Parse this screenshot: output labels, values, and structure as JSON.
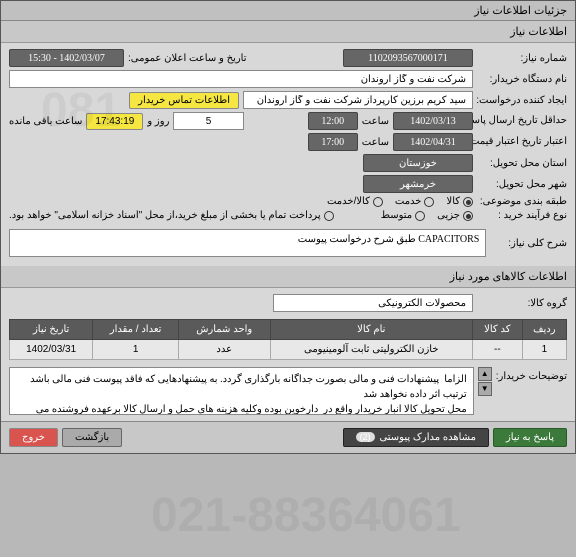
{
  "window": {
    "title": "جزئیات اطلاعات نیاز"
  },
  "section1": "اطلاعات نیاز",
  "labels": {
    "need_number": "شماره نیاز:",
    "public_announce": "تاریخ و ساعت اعلان عمومی:",
    "buyer_org": "نام دستگاه خریدار:",
    "request_creator": "ایجاد کننده درخواست:",
    "deadline": "حداقل تاریخ ارسال پاسخ: تا تاریخ:",
    "hour1": "ساعت",
    "hour2": "ساعت",
    "days_and": "روز و",
    "remaining": "ساعت باقی مانده",
    "validity": "اعتبار تاریخ اعتبار قیمت: تا تاریخ:",
    "delivery_province": "استان محل تحویل:",
    "delivery_city": "شهر محل تحویل:",
    "category": "طبقه بندی موضوعی:",
    "purchase_type": "نوع فرآیند خرید :",
    "payment_note": "پرداخت تمام یا بخشی از مبلغ خرید،از محل \"اسناد خزانه اسلامی\" خواهد بود.",
    "contact_btn": "اطلاعات تماس خریدار",
    "need_desc": "شرح کلی نیاز:",
    "goods_section": "اطلاعات کالاهای مورد نیاز",
    "goods_group": "گروه کالا:",
    "buyer_notes": "توضیحات خریدار:"
  },
  "values": {
    "need_number": "1102093567000171",
    "announce_datetime": "1402/03/07 - 15:30",
    "buyer_org": "شرکت نفت و گاز اروندان",
    "request_creator": "سید کریم برزین کارپرداز شرکت نفت و گاز اروندان",
    "deadline_date": "1402/03/13",
    "deadline_time": "12:00",
    "days_left": "5",
    "time_left": "17:43:19",
    "validity_date": "1402/04/31",
    "validity_time": "17:00",
    "province": "خوزستان",
    "city": "خرمشهر",
    "need_desc": "CAPACITORS طبق شرح درخواست پیوست",
    "goods_group": "محصولات الکترونیکی",
    "buyer_notes": "الزاما  پیشنهادات فنی و مالی بصورت جداگانه بارگذاری گردد. به پیشنهادهایی که فاقد پیوست فنی مالی باشد ترتیب اثر داده نخواهد شد\nمحل تحویل کالا انبار خریدار واقع در  دارخوین بوده وکلیه هزینه های حمل و ارسال کالا برعهده فروشنده می باشد"
  },
  "radios": {
    "category": [
      {
        "label": "کالا",
        "selected": true
      },
      {
        "label": "خدمت",
        "selected": false
      },
      {
        "label": "کالا/خدمت",
        "selected": false
      }
    ],
    "purchase": [
      {
        "label": "جزیی",
        "selected": true
      },
      {
        "label": "متوسط",
        "selected": false
      }
    ]
  },
  "table": {
    "headers": [
      "ردیف",
      "کد کالا",
      "نام کالا",
      "واحد شمارش",
      "تعداد / مقدار",
      "تاریخ نیاز"
    ],
    "rows": [
      [
        "1",
        "--",
        "خازن الکترولیتی ثابت آلومینیومی",
        "عدد",
        "1",
        "1402/03/31"
      ]
    ]
  },
  "footer": {
    "reply": "پاسخ به نیاز",
    "attachments": "مشاهده مدارک پیوستی",
    "attach_count": "(2)",
    "back": "بازگشت",
    "exit": "خروج"
  }
}
